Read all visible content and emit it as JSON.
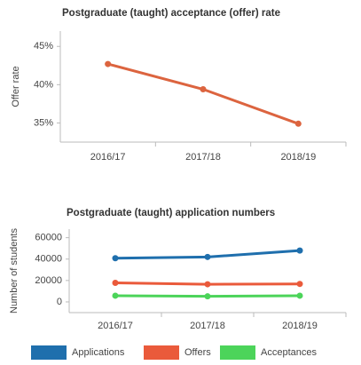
{
  "chart_data": [
    {
      "type": "line",
      "title": "Postgraduate (taught) acceptance (offer) rate",
      "y_label": "Offer rate",
      "categories": [
        "2016/17",
        "2017/18",
        "2018/19"
      ],
      "series": [
        {
          "name": "Offer rate",
          "color": "#dc643f",
          "values": [
            42.7,
            39.4,
            34.9
          ]
        }
      ],
      "ylim": [
        32.5,
        47
      ],
      "yticks": [
        {
          "value": 35,
          "label": "35%"
        },
        {
          "value": 40,
          "label": "40%"
        },
        {
          "value": 45,
          "label": "45%"
        }
      ],
      "grid": false
    },
    {
      "type": "line",
      "title": "Postgraduate (taught) application numbers",
      "y_label": "Number of students",
      "categories": [
        "2016/17",
        "2017/18",
        "2018/19"
      ],
      "series": [
        {
          "name": "Applications",
          "color": "#1f6fad",
          "values": [
            40800,
            42000,
            48000
          ]
        },
        {
          "name": "Offers",
          "color": "#ea5a3b",
          "values": [
            17800,
            16500,
            16800
          ]
        },
        {
          "name": "Acceptances",
          "color": "#4cd45a",
          "values": [
            5800,
            5200,
            5800
          ]
        }
      ],
      "ylim": [
        -10000,
        68000
      ],
      "yticks": [
        0,
        20000,
        40000,
        60000
      ],
      "grid": false,
      "legend": "bottom"
    }
  ]
}
